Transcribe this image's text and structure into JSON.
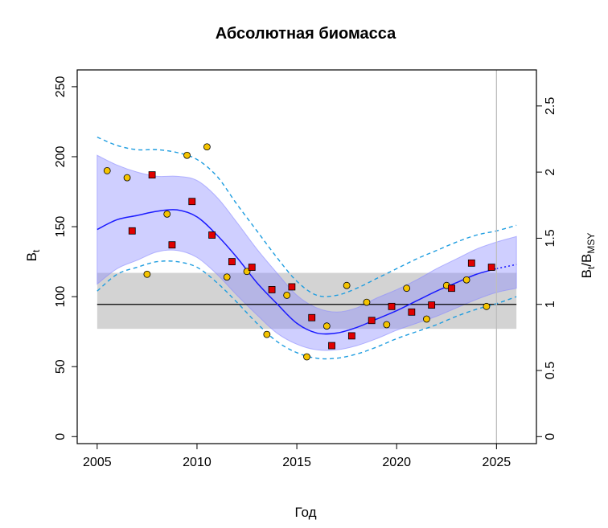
{
  "chart_data": {
    "type": "scatter",
    "title": "Абсолютная биомасса",
    "xlabel": "Год",
    "ylabel": "B",
    "ylabel_sub": "t",
    "y2label_main": "B",
    "y2label_sub1": "t",
    "y2label_sep": "/",
    "y2label_main2": "B",
    "y2label_sub2": "MSY",
    "xlim": [
      2004,
      2027
    ],
    "ylim": [
      -5,
      262
    ],
    "x_ticks": [
      "2005",
      "2010",
      "2015",
      "2020",
      "2025"
    ],
    "y_ticks": [
      "0",
      "50",
      "100",
      "150",
      "200",
      "250"
    ],
    "y2_ticks": [
      "0",
      "0.5",
      "1",
      "1.5",
      "2",
      "2.5"
    ],
    "bmsy": 94.5,
    "bmsy_band": [
      77,
      117
    ],
    "vline_x": 2025,
    "colors": {
      "index1": "#f5c400",
      "index2": "#e00000",
      "median": "#1a1aff",
      "ci_fill": "#8c8cff",
      "outer": "#1e9de0",
      "band": "#d3d3d3",
      "vline": "#bebebe"
    },
    "series": [
      {
        "marker": "circle",
        "x": [
          2005.5,
          2006.5,
          2007.5,
          2008.5,
          2009.5,
          2010.5,
          2011.5,
          2012.5,
          2013.5,
          2014.5,
          2015.5,
          2016.5,
          2017.5,
          2018.5,
          2019.5,
          2020.5,
          2021.5,
          2022.5,
          2023.5,
          2024.5
        ],
        "values": [
          190,
          185,
          116,
          159,
          201,
          207,
          114,
          118,
          73,
          101,
          57,
          79,
          108,
          96,
          80,
          106,
          84,
          108,
          112,
          93
        ]
      },
      {
        "marker": "square",
        "x": [
          2006.75,
          2007.75,
          2008.75,
          2009.75,
          2010.75,
          2011.75,
          2012.75,
          2013.75,
          2014.75,
          2015.75,
          2016.75,
          2017.75,
          2018.75,
          2019.75,
          2020.75,
          2021.75,
          2022.75,
          2023.75,
          2024.75
        ],
        "values": [
          147,
          187,
          137,
          168,
          144,
          125,
          121,
          105,
          107,
          85,
          65,
          72,
          83,
          93,
          89,
          94,
          106,
          124,
          121
        ]
      }
    ],
    "median": {
      "x": [
        2005,
        2006,
        2007,
        2008,
        2009,
        2010,
        2011,
        2012,
        2013,
        2014,
        2015,
        2016,
        2017,
        2018,
        2019,
        2020,
        2021,
        2022,
        2023,
        2024,
        2025,
        2026
      ],
      "values": [
        148,
        155,
        158,
        161,
        162,
        157,
        144,
        128,
        110,
        95,
        81,
        74,
        74,
        78,
        84,
        90,
        97,
        104,
        110,
        116,
        120,
        123
      ]
    },
    "ci_lower": [
      109,
      120,
      126,
      132,
      133,
      128,
      116,
      101,
      87,
      74,
      66,
      62,
      62,
      65,
      70,
      76,
      81,
      86,
      92,
      98,
      103,
      106
    ],
    "ci_upper": [
      201,
      194,
      189,
      186,
      186,
      183,
      171,
      153,
      134,
      117,
      101,
      92,
      89,
      92,
      99,
      105,
      112,
      120,
      127,
      134,
      139,
      143
    ],
    "outer_lower": [
      104,
      116,
      121,
      125,
      125,
      121,
      110,
      96,
      81,
      68,
      60,
      56,
      56,
      59,
      64,
      70,
      75,
      80,
      86,
      91,
      95,
      100
    ],
    "outer_upper": [
      214,
      208,
      205,
      205,
      203,
      198,
      186,
      166,
      147,
      128,
      111,
      101,
      101,
      106,
      113,
      120,
      127,
      133,
      139,
      144,
      147,
      151
    ]
  }
}
